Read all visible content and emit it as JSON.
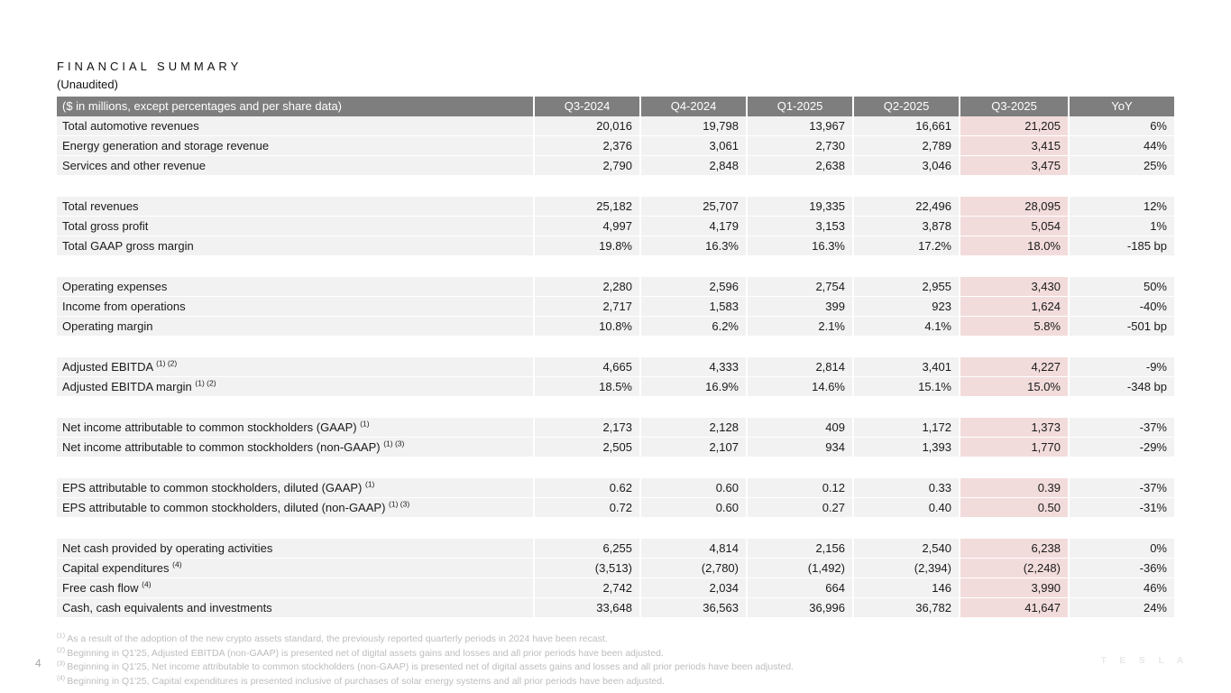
{
  "page": {
    "title": "F I N A N C I A L   S U M M A R Y",
    "title_plain": "FINANCIAL SUMMARY",
    "subtitle": "(Unaudited)",
    "page_number": "4",
    "brand_wordmark": "T E S L A"
  },
  "colors": {
    "header_bg": "#7E7E7E",
    "header_text": "#FFFFFF",
    "row_bg": "#F2F2F2",
    "highlight_column_bg": "#F2DCDB",
    "body_text": "#1A1A1A",
    "footnote_text": "#BDBDBD",
    "background": "#FFFFFF"
  },
  "table": {
    "header_label": "($ in millions, except percentages and per share data)",
    "columns": [
      "Q3-2024",
      "Q4-2024",
      "Q1-2025",
      "Q2-2025",
      "Q3-2025",
      "YoY"
    ],
    "highlight_column": "Q3-2025",
    "sections": [
      {
        "rows": [
          {
            "label": "Total automotive revenues",
            "sup": "",
            "values": [
              "20,016",
              "19,798",
              "13,967",
              "16,661",
              "21,205",
              "6%"
            ]
          },
          {
            "label": "Energy generation and storage revenue",
            "sup": "",
            "values": [
              "2,376",
              "3,061",
              "2,730",
              "2,789",
              "3,415",
              "44%"
            ]
          },
          {
            "label": "Services and other revenue",
            "sup": "",
            "values": [
              "2,790",
              "2,848",
              "2,638",
              "3,046",
              "3,475",
              "25%"
            ]
          }
        ]
      },
      {
        "rows": [
          {
            "label": "Total revenues",
            "sup": "",
            "values": [
              "25,182",
              "25,707",
              "19,335",
              "22,496",
              "28,095",
              "12%"
            ]
          },
          {
            "label": "Total gross profit",
            "sup": "",
            "values": [
              "4,997",
              "4,179",
              "3,153",
              "3,878",
              "5,054",
              "1%"
            ]
          },
          {
            "label": "Total GAAP gross margin",
            "sup": "",
            "values": [
              "19.8%",
              "16.3%",
              "16.3%",
              "17.2%",
              "18.0%",
              "-185 bp"
            ]
          }
        ]
      },
      {
        "rows": [
          {
            "label": "Operating expenses",
            "sup": "",
            "values": [
              "2,280",
              "2,596",
              "2,754",
              "2,955",
              "3,430",
              "50%"
            ]
          },
          {
            "label": "Income from operations",
            "sup": "",
            "values": [
              "2,717",
              "1,583",
              "399",
              "923",
              "1,624",
              "-40%"
            ]
          },
          {
            "label": "Operating margin",
            "sup": "",
            "values": [
              "10.8%",
              "6.2%",
              "2.1%",
              "4.1%",
              "5.8%",
              "-501 bp"
            ]
          }
        ]
      },
      {
        "rows": [
          {
            "label": "Adjusted EBITDA ",
            "sup": "(1) (2)",
            "values": [
              "4,665",
              "4,333",
              "2,814",
              "3,401",
              "4,227",
              "-9%"
            ]
          },
          {
            "label": "Adjusted EBITDA margin ",
            "sup": "(1) (2)",
            "values": [
              "18.5%",
              "16.9%",
              "14.6%",
              "15.1%",
              "15.0%",
              "-348 bp"
            ]
          }
        ]
      },
      {
        "rows": [
          {
            "label": "Net income attributable to common stockholders (GAAP) ",
            "sup": "(1)",
            "values": [
              "2,173",
              "2,128",
              "409",
              "1,172",
              "1,373",
              "-37%"
            ]
          },
          {
            "label": "Net income attributable to common stockholders (non-GAAP) ",
            "sup": "(1) (3)",
            "values": [
              "2,505",
              "2,107",
              "934",
              "1,393",
              "1,770",
              "-29%"
            ]
          }
        ]
      },
      {
        "rows": [
          {
            "label": "EPS attributable to common stockholders, diluted (GAAP) ",
            "sup": "(1)",
            "values": [
              "0.62",
              "0.60",
              "0.12",
              "0.33",
              "0.39",
              "-37%"
            ]
          },
          {
            "label": "EPS attributable to common stockholders, diluted (non-GAAP) ",
            "sup": "(1) (3)",
            "values": [
              "0.72",
              "0.60",
              "0.27",
              "0.40",
              "0.50",
              "-31%"
            ]
          }
        ]
      },
      {
        "rows": [
          {
            "label": "Net cash provided by operating activities",
            "sup": "",
            "values": [
              "6,255",
              "4,814",
              "2,156",
              "2,540",
              "6,238",
              "0%"
            ]
          },
          {
            "label": "Capital expenditures ",
            "sup": "(4)",
            "values": [
              "(3,513)",
              "(2,780)",
              "(1,492)",
              "(2,394)",
              "(2,248)",
              "-36%"
            ]
          },
          {
            "label": "Free cash flow ",
            "sup": "(4)",
            "values": [
              "2,742",
              "2,034",
              "664",
              "146",
              "3,990",
              "46%"
            ]
          },
          {
            "label": "Cash, cash equivalents and investments",
            "sup": "",
            "values": [
              "33,648",
              "36,563",
              "36,996",
              "36,782",
              "41,647",
              "24%"
            ]
          }
        ]
      }
    ]
  },
  "footnotes": [
    {
      "marker": "(1)",
      "text": "As a result of the adoption of the new crypto assets standard, the previously reported quarterly periods in 2024 have been recast."
    },
    {
      "marker": "(2)",
      "text": "Beginning in Q1'25, Adjusted EBITDA (non-GAAP) is presented net of digital assets gains and losses and all prior periods have been adjusted."
    },
    {
      "marker": "(3)",
      "text": "Beginning in Q1'25, Net income attributable to common stockholders (non-GAAP) is presented net of digital assets gains and losses and all prior periods have been adjusted."
    },
    {
      "marker": "(4)",
      "text": "Beginning in Q1'25, Capital expenditures is presented inclusive of purchases of solar energy systems and all prior periods have been adjusted."
    }
  ]
}
